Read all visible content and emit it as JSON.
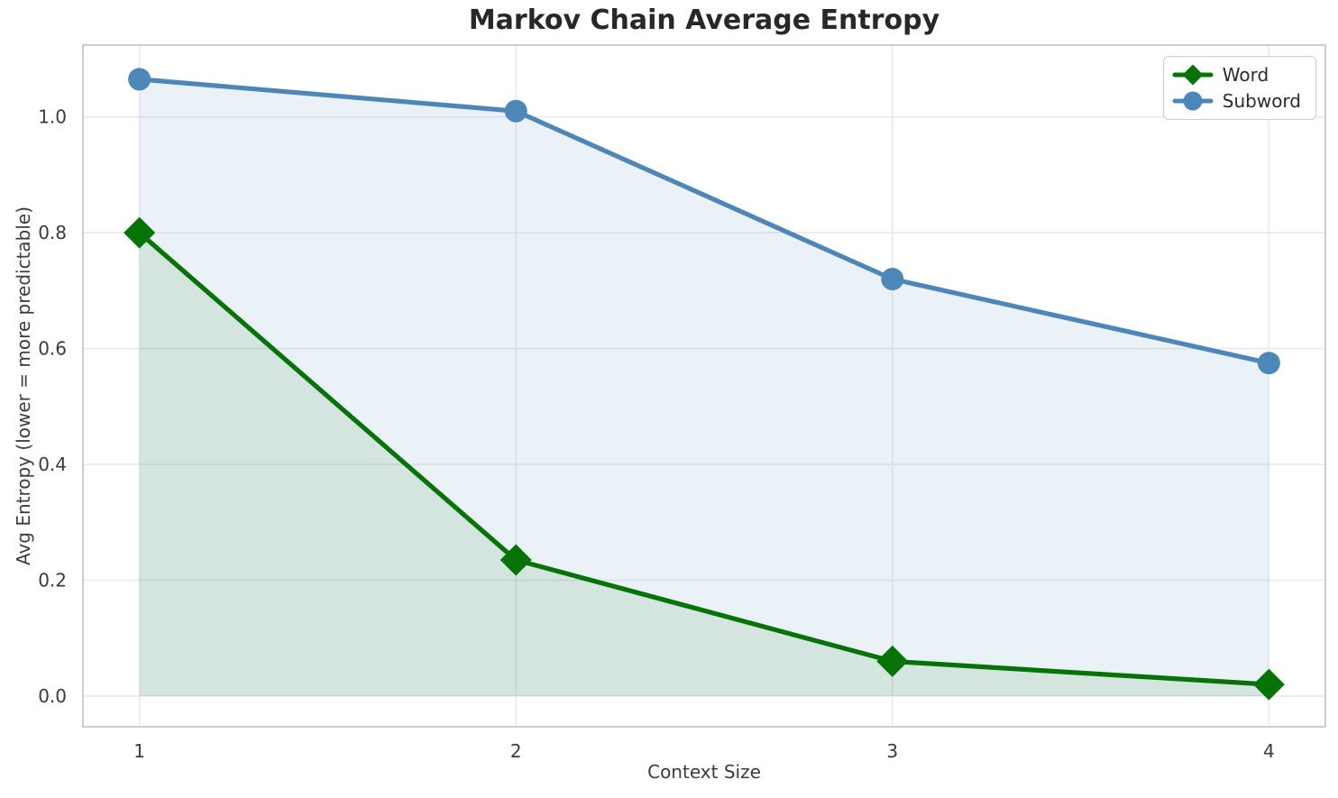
{
  "chart_data": {
    "type": "line",
    "title": "Markov Chain Average Entropy",
    "xlabel": "Context Size",
    "ylabel": "Avg Entropy (lower = more predictable)",
    "x": [
      1,
      2,
      3,
      4
    ],
    "series": [
      {
        "name": "Word",
        "values": [
          0.8,
          0.235,
          0.06,
          0.02
        ],
        "color": "#067306",
        "fill_color": "rgba(6,115,6,0.10)",
        "marker": "diamond"
      },
      {
        "name": "Subword",
        "values": [
          1.065,
          1.01,
          0.72,
          0.575
        ],
        "color": "#4d86b9",
        "fill_color": "rgba(77,134,185,0.11)",
        "marker": "circle"
      }
    ],
    "xticks": [
      1,
      2,
      3,
      4
    ],
    "xtick_labels": [
      "1",
      "2",
      "3",
      "4"
    ],
    "yticks": [
      0.0,
      0.2,
      0.4,
      0.6,
      0.8,
      1.0
    ],
    "ytick_labels": [
      "0.0",
      "0.2",
      "0.4",
      "0.6",
      "0.8",
      "1.0"
    ],
    "xlim": [
      0.85,
      4.15
    ],
    "ylim": [
      -0.053,
      1.124
    ],
    "grid": true,
    "area_fill_baseline": 0,
    "legend_position": "upper right",
    "colors": {
      "grid": "#e9e9ed",
      "spine": "#cdcdcd",
      "tick_text": "#3b3b3b",
      "title_text": "#282828",
      "background": "#ffffff"
    }
  }
}
